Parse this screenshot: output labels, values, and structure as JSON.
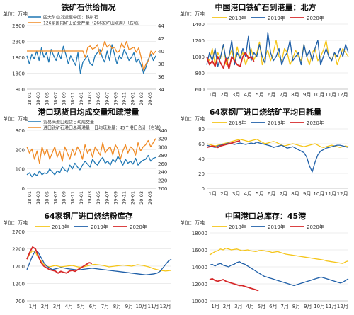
{
  "colors": {
    "blue": "#1f77b4",
    "orange": "#f08a24",
    "yellow": "#f5c518",
    "dark_blue": "#1f5fa8",
    "red": "#d62728",
    "grid": "#e6e6e6",
    "axis_text": "#333333",
    "title_text": "#111111"
  },
  "chart_data": [
    {
      "id": "supply",
      "type": "line",
      "title": "铁矿石供给情况",
      "unit_left": "万吨",
      "unit_right": "",
      "dual_axis": true,
      "ylim_left": [
        800,
        2800
      ],
      "yticks_left": [
        800,
        1300,
        1800,
        2300,
        2800
      ],
      "ylim_right": [
        34,
        44
      ],
      "yticks_right": [
        34,
        36,
        38,
        40,
        42,
        44
      ],
      "x_tick_labels": [
        "18-01",
        "18-03",
        "18-05",
        "18-07",
        "18-09",
        "18-11",
        "19-01",
        "19-03",
        "19-05",
        "19-07",
        "19-09",
        "19-11",
        "20-01",
        "20-03",
        "20-05"
      ],
      "series": [
        {
          "name": "四大矿山发运至中国：铁矿石",
          "axis": "left",
          "color": "blue",
          "values": [
            1850,
            1600,
            1900,
            1750,
            2000,
            1700,
            2100,
            1800,
            1950,
            1650,
            2050,
            1850,
            1700,
            1950,
            1750,
            2150,
            1900,
            1600,
            1850,
            1700,
            1550,
            1950,
            1300,
            1650,
            1750,
            1850,
            1600,
            1550,
            1850,
            1950,
            2050,
            1800,
            1650,
            2000,
            1700,
            2200,
            1900,
            1600,
            1850,
            1750,
            2050,
            1900,
            1700,
            1800,
            1950,
            1650,
            1750,
            1550,
            1300,
            1500,
            1750,
            1900,
            1700,
            1850
          ]
        },
        {
          "name": "126家国内矿山企业产量（266家矿山双周）（右轴）",
          "axis": "right",
          "color": "orange",
          "values": [
            40,
            40,
            40,
            40,
            40,
            40,
            40,
            40,
            40,
            40,
            40,
            40,
            40,
            40,
            40,
            40,
            40,
            40,
            40,
            40,
            40,
            40,
            40,
            40,
            39,
            40.5,
            40.8,
            40.3,
            40.5,
            41,
            39.5,
            40.2,
            41.5,
            40.6,
            41,
            40.4,
            40.6,
            39.8,
            40,
            41.2,
            40.5,
            41.5,
            40.2,
            40.4,
            40.6,
            39.8,
            40.5,
            39,
            37,
            38,
            38.5,
            40,
            39.5,
            40
          ]
        }
      ]
    },
    {
      "id": "north_port",
      "type": "line",
      "title": "中国港口铁矿石到港量：北方",
      "unit_left": "万吨",
      "dual_axis": false,
      "ylim_left": [
        600,
        1400
      ],
      "yticks_left": [
        600,
        800,
        1000,
        1200,
        1400
      ],
      "x_tick_labels": [
        "1月",
        "2月",
        "3月",
        "4月",
        "5月",
        "6月",
        "7月",
        "8月",
        "9月",
        "10月",
        "11月",
        "12月"
      ],
      "x_count": 52,
      "legend": [
        "2018年",
        "2019年",
        "2020年"
      ],
      "series": [
        {
          "name": "2018年",
          "color": "yellow",
          "values": [
            1000,
            950,
            1100,
            900,
            1050,
            980,
            1150,
            900,
            1000,
            1080,
            940,
            1120,
            980,
            1050,
            900,
            1000,
            1100,
            960,
            1040,
            1180,
            900,
            1000,
            1080,
            950,
            1050,
            1200,
            1000,
            950,
            1100,
            1050,
            900,
            980,
            1080,
            1000,
            950,
            1150,
            1000,
            900,
            1050,
            1100,
            950,
            1000,
            1080,
            1200,
            1000,
            960,
            1050,
            900,
            1000,
            1100,
            1050,
            1000
          ]
        },
        {
          "name": "2019年",
          "color": "dark_blue",
          "values": [
            900,
            1050,
            950,
            1100,
            880,
            1000,
            1150,
            950,
            1000,
            1200,
            900,
            1050,
            980,
            1100,
            1000,
            1250,
            950,
            1050,
            1000,
            1150,
            1000,
            920,
            1300,
            1050,
            950,
            1000,
            1100,
            900,
            1000,
            1050,
            1200,
            950,
            1000,
            1050,
            900,
            1150,
            1000,
            1080,
            950,
            1100,
            1200,
            900,
            1000,
            1100,
            1000,
            950,
            1050,
            1000,
            1100,
            1000,
            1150,
            1050
          ]
        },
        {
          "name": "2020年",
          "color": "red",
          "values": [
            1000,
            900,
            950,
            880,
            1000,
            920,
            860,
            980,
            850,
            1000,
            950,
            900,
            880,
            1000,
            1050,
            980,
            1000,
            940
          ]
        }
      ]
    },
    {
      "id": "port_trade",
      "type": "line",
      "title": "港口现货日均成交量和疏港量",
      "unit_left": "万吨",
      "dual_axis": true,
      "ylim_left": [
        0,
        300
      ],
      "yticks_left": [
        0,
        100,
        200,
        300
      ],
      "ylim_right": [
        200,
        340
      ],
      "yticks_right": [
        200,
        220,
        240,
        260,
        280,
        300,
        320,
        340
      ],
      "x_tick_labels": [
        "18-01",
        "18-03",
        "18-05",
        "18-07",
        "18-09",
        "18-11",
        "19-01",
        "19-03",
        "19-05",
        "19-07",
        "19-09",
        "19-11",
        "20-01",
        "20-03",
        "20-05"
      ],
      "series": [
        {
          "name": "贸易商港口现货日均成交量",
          "axis": "left",
          "color": "blue",
          "values": [
            70,
            80,
            60,
            75,
            65,
            90,
            70,
            80,
            75,
            100,
            85,
            70,
            90,
            80,
            110,
            95,
            85,
            120,
            100,
            130,
            110,
            95,
            120,
            140,
            125,
            110,
            150,
            130,
            120,
            145,
            160,
            130,
            140,
            120,
            150,
            135,
            165,
            145,
            120,
            150,
            130,
            140,
            125,
            155,
            120,
            135,
            145,
            150,
            170,
            140,
            155,
            160
          ]
        },
        {
          "name": "进口铁矿石港口总疏港量：日均疏港量：45个港口合计（右轴）",
          "axis": "right",
          "color": "orange",
          "values": [
            300,
            285,
            295,
            270,
            290,
            260,
            300,
            280,
            295,
            270,
            285,
            300,
            275,
            290,
            265,
            300,
            285,
            270,
            295,
            280,
            300,
            290,
            270,
            305,
            285,
            295,
            275,
            300,
            290,
            280,
            310,
            285,
            295,
            300,
            280,
            305,
            295,
            270,
            290,
            305,
            285,
            300,
            295,
            280,
            310,
            290,
            300,
            305,
            315,
            300,
            310,
            320
          ]
        }
      ]
    },
    {
      "id": "daily_use",
      "type": "line",
      "title": "64家钢厂进口烧结矿平均日耗量",
      "unit_left": "万吨",
      "dual_axis": false,
      "ylim_left": [
        0,
        80
      ],
      "yticks_left": [
        0,
        20,
        40,
        60,
        80
      ],
      "x_tick_labels": [
        "1月",
        "2月",
        "3月",
        "4月",
        "5月",
        "6月",
        "7月",
        "8月",
        "9月",
        "10月",
        "11月",
        "12月"
      ],
      "x_count": 52,
      "legend": [
        "2018年",
        "2019年",
        "2020年"
      ],
      "series": [
        {
          "name": "2018年",
          "color": "yellow",
          "values": [
            60,
            59,
            58,
            57,
            58,
            59,
            60,
            61,
            62,
            63,
            64,
            65,
            66,
            65,
            64,
            63,
            64,
            65,
            66,
            64,
            62,
            60,
            61,
            62,
            63,
            62,
            60,
            58,
            57,
            58,
            59,
            60,
            59,
            58,
            57,
            56,
            57,
            58,
            59,
            60,
            58,
            56,
            55,
            56,
            57,
            58,
            57,
            56,
            55,
            56,
            57,
            56
          ]
        },
        {
          "name": "2019年",
          "color": "dark_blue",
          "values": [
            58,
            57,
            56,
            55,
            57,
            58,
            59,
            60,
            61,
            60,
            59,
            60,
            61,
            60,
            59,
            60,
            61,
            60,
            62,
            61,
            60,
            59,
            58,
            57,
            55,
            56,
            57,
            58,
            56,
            54,
            55,
            56,
            54,
            52,
            50,
            48,
            42,
            30,
            22,
            35,
            45,
            50,
            52,
            54,
            55,
            56,
            57,
            58,
            58,
            57,
            56,
            55
          ]
        },
        {
          "name": "2020年",
          "color": "red",
          "values": [
            55,
            56,
            57,
            56,
            55,
            57,
            58,
            59,
            60,
            61,
            62,
            63,
            64
          ]
        }
      ]
    },
    {
      "id": "sinter_stock",
      "type": "line",
      "title": "64家钢厂进口烧结粉库存",
      "unit_left": "万吨",
      "dual_axis": false,
      "ylim_left": [
        700,
        2700
      ],
      "yticks_left": [
        700,
        1200,
        1700,
        2200,
        2700
      ],
      "x_tick_labels": [
        "1月",
        "2月",
        "3月",
        "4月",
        "5月",
        "6月",
        "7月",
        "8月",
        "9月",
        "10月",
        "11月",
        "12月"
      ],
      "x_count": 52,
      "legend": [
        "2018年",
        "2019年",
        "2020年"
      ],
      "series": [
        {
          "name": "2018年",
          "color": "yellow",
          "values": [
            1900,
            2050,
            2150,
            2100,
            1950,
            1850,
            1750,
            1700,
            1680,
            1700,
            1720,
            1700,
            1680,
            1690,
            1700,
            1710,
            1720,
            1700,
            1680,
            1670,
            1680,
            1700,
            1720,
            1740,
            1750,
            1740,
            1730,
            1720,
            1700,
            1680,
            1690,
            1700,
            1710,
            1720,
            1730,
            1720,
            1710,
            1700,
            1720,
            1740,
            1730,
            1720,
            1700,
            1680,
            1650,
            1620,
            1600,
            1580,
            1570,
            1560,
            1570,
            1580
          ]
        },
        {
          "name": "2019年",
          "color": "dark_blue",
          "values": [
            1600,
            1800,
            2000,
            2150,
            2100,
            1950,
            1800,
            1700,
            1650,
            1600,
            1620,
            1640,
            1660,
            1650,
            1630,
            1620,
            1610,
            1600,
            1590,
            1600,
            1610,
            1620,
            1630,
            1640,
            1630,
            1620,
            1610,
            1600,
            1590,
            1580,
            1570,
            1560,
            1550,
            1540,
            1530,
            1520,
            1510,
            1500,
            1490,
            1480,
            1470,
            1460,
            1450,
            1460,
            1470,
            1480,
            1500,
            1550,
            1650,
            1750,
            1850,
            1900
          ]
        },
        {
          "name": "2020年",
          "color": "red",
          "values": [
            1900,
            2100,
            2250,
            2200,
            2000,
            1800,
            1700,
            1650,
            1600,
            1580,
            1560,
            1500,
            1550,
            1520,
            1500,
            1560,
            1580,
            1550,
            1600,
            1650,
            1700,
            1750,
            1800,
            1780
          ]
        }
      ]
    },
    {
      "id": "port_stock",
      "type": "line",
      "title": "中国港口总库存：45港",
      "unit_left": "万吨",
      "dual_axis": false,
      "ylim_left": [
        10000,
        18000
      ],
      "yticks_left": [
        10000,
        12000,
        14000,
        16000,
        18000
      ],
      "x_tick_labels": [
        "1月",
        "2月",
        "3月",
        "4月",
        "5月",
        "6月",
        "7月",
        "8月",
        "9月",
        "10月",
        "11月",
        "12月"
      ],
      "x_count": 52,
      "legend": [
        "2018年",
        "2019年",
        "2020年"
      ],
      "series": [
        {
          "name": "2018年",
          "color": "yellow",
          "values": [
            15400,
            15600,
            15800,
            15900,
            16100,
            16000,
            16200,
            16100,
            16000,
            16050,
            16100,
            16000,
            15900,
            15950,
            16000,
            15900,
            15850,
            15800,
            15900,
            15950,
            15900,
            15850,
            15800,
            15700,
            15750,
            15800,
            15700,
            15600,
            15500,
            15450,
            15400,
            15350,
            15300,
            15250,
            15200,
            15150,
            15100,
            15050,
            15000,
            14950,
            14900,
            14850,
            14800,
            14700,
            14650,
            14600,
            14550,
            14500,
            14450,
            14400,
            14600,
            14700
          ]
        },
        {
          "name": "2019年",
          "color": "dark_blue",
          "values": [
            14200,
            14300,
            14100,
            14300,
            14400,
            14200,
            14100,
            14000,
            14200,
            14300,
            14500,
            14600,
            14400,
            14300,
            14100,
            13900,
            13700,
            13500,
            13300,
            13100,
            12900,
            12800,
            12700,
            12600,
            12500,
            12400,
            12300,
            12200,
            12100,
            12000,
            11900,
            11800,
            11900,
            12000,
            12100,
            12200,
            12300,
            12400,
            12500,
            12600,
            12700,
            12800,
            12700,
            12600,
            12500,
            12400,
            12300,
            12200,
            12100,
            12200,
            12400,
            12600
          ]
        },
        {
          "name": "2020年",
          "color": "red",
          "values": [
            12500,
            12600,
            12400,
            12300,
            12400,
            12500,
            12300,
            12200,
            12100,
            12000,
            11900,
            11800,
            11800,
            11700,
            11600,
            11500,
            11400,
            11300,
            11200
          ]
        }
      ]
    }
  ]
}
